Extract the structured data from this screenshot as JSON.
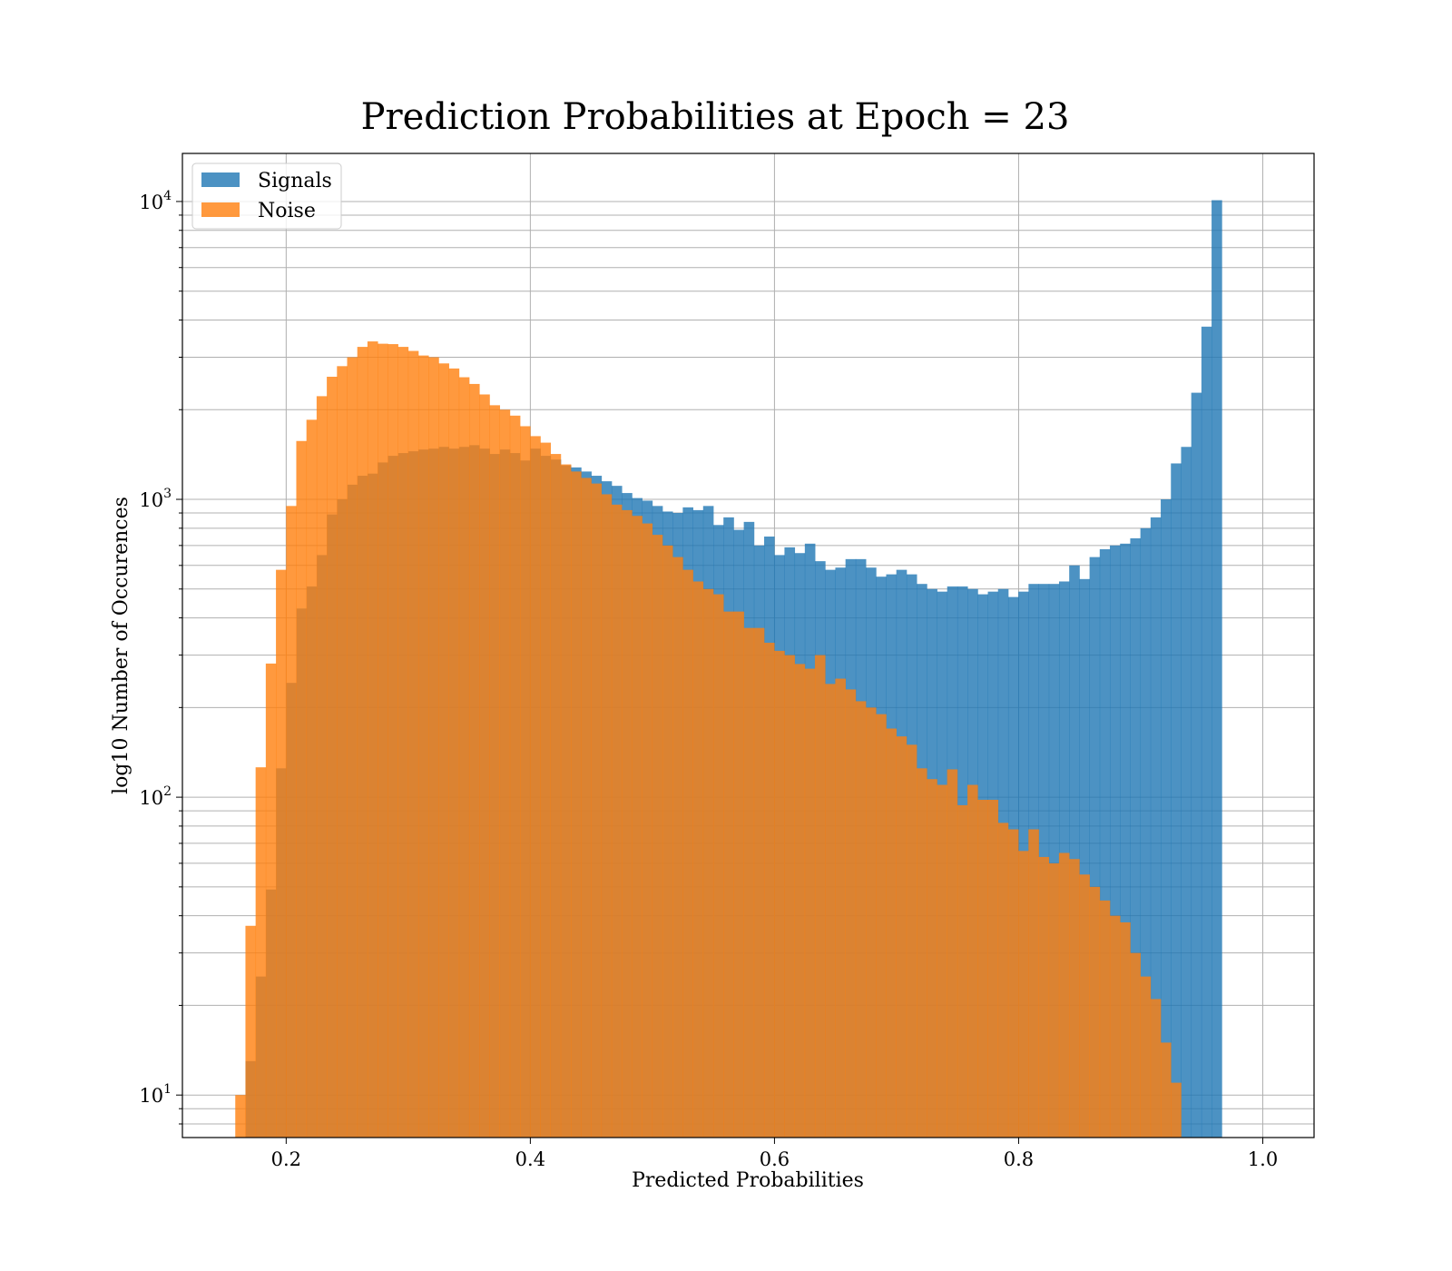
{
  "chart_data": {
    "type": "bar",
    "subtype": "overlapping-histogram",
    "title": "Prediction Probabilities at Epoch = 23",
    "xlabel": "Predicted Probabilities",
    "ylabel": "log10 Number of Occurences",
    "yscale": "log",
    "xlim": [
      0.115,
      1.042
    ],
    "ylim": [
      7.2,
      14500
    ],
    "xticks": [
      0.2,
      0.4,
      0.6,
      0.8,
      1.0
    ],
    "xtick_labels": [
      "0.2",
      "0.4",
      "0.6",
      "0.8",
      "1.0"
    ],
    "yticks": [
      10,
      100,
      1000,
      10000
    ],
    "ytick_labels": [
      {
        "base": "10",
        "exp": "1"
      },
      {
        "base": "10",
        "exp": "2"
      },
      {
        "base": "10",
        "exp": "3"
      },
      {
        "base": "10",
        "exp": "4"
      }
    ],
    "grid": true,
    "legend_position": "upper left",
    "series": [
      {
        "name": "Signals",
        "color": "#1f77b4",
        "x_start": 0.1667,
        "bin_width": 0.00833,
        "values": [
          13,
          25,
          49,
          125,
          242,
          430,
          510,
          650,
          890,
          1000,
          1120,
          1200,
          1220,
          1330,
          1400,
          1430,
          1450,
          1470,
          1480,
          1500,
          1480,
          1500,
          1520,
          1480,
          1420,
          1470,
          1430,
          1350,
          1480,
          1400,
          1360,
          1300,
          1280,
          1240,
          1200,
          1150,
          1110,
          1050,
          1010,
          990,
          950,
          910,
          900,
          940,
          920,
          950,
          820,
          870,
          790,
          840,
          700,
          750,
          650,
          690,
          660,
          710,
          620,
          580,
          590,
          630,
          630,
          590,
          550,
          560,
          580,
          560,
          520,
          500,
          490,
          510,
          510,
          500,
          480,
          490,
          500,
          470,
          490,
          520,
          520,
          520,
          530,
          600,
          540,
          640,
          680,
          700,
          710,
          740,
          800,
          870,
          1000,
          1320,
          1500,
          2280,
          3800,
          10100
        ]
      },
      {
        "name": "Noise",
        "color": "#ff7f0e",
        "x_start": 0.1583,
        "bin_width": 0.00833,
        "values": [
          10,
          37,
          126,
          281,
          580,
          950,
          1570,
          1850,
          2220,
          2580,
          2800,
          3000,
          3250,
          3390,
          3330,
          3320,
          3250,
          3150,
          3040,
          3000,
          2860,
          2750,
          2570,
          2440,
          2250,
          2070,
          2000,
          1910,
          1760,
          1630,
          1550,
          1420,
          1310,
          1240,
          1180,
          1130,
          1040,
          960,
          920,
          880,
          830,
          760,
          700,
          640,
          580,
          530,
          500,
          480,
          420,
          420,
          370,
          370,
          330,
          310,
          300,
          280,
          270,
          300,
          240,
          250,
          230,
          210,
          200,
          190,
          170,
          160,
          150,
          125,
          115,
          110,
          124,
          94,
          110,
          98,
          98,
          82,
          78,
          66,
          78,
          63,
          60,
          65,
          62,
          55,
          50,
          45,
          40,
          38,
          30,
          25,
          21,
          15,
          11
        ]
      }
    ]
  }
}
